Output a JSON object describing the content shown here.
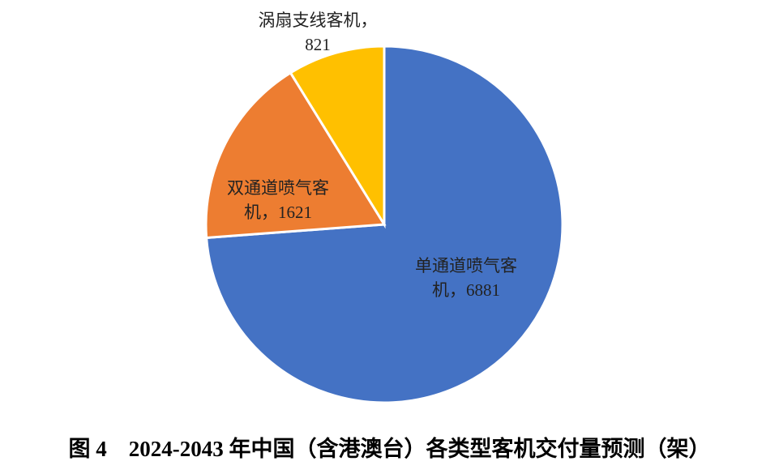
{
  "chart_data": {
    "type": "pie",
    "title": "图 4　2024-2043 年中国（含港澳台）各类型客机交付量预测（架）",
    "values": [
      6881,
      1621,
      821
    ],
    "value_labels": [
      "单通道喷气客机，6881",
      "双通道喷气客机，1621",
      "涡扇支线客机，821"
    ],
    "colors": [
      "#4472c4",
      "#ed7d31",
      "#ffc000"
    ]
  }
}
